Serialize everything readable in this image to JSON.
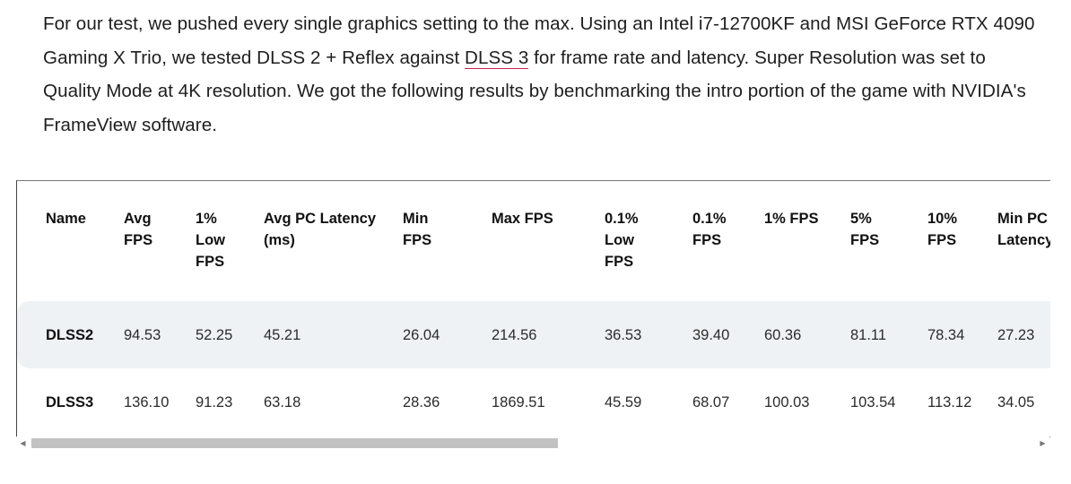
{
  "article": {
    "text_before_link": "For our test, we pushed every single graphics setting to the max. Using an Intel i7-12700KF and MSI GeForce RTX 4090 Gaming X Trio, we tested DLSS 2 + Reflex against ",
    "link_text": "DLSS 3",
    "text_after_link": " for frame rate and latency. Super Resolution was set to Quality Mode at 4K resolution. We got the following results by benchmarking the intro portion of the game with NVIDIA's FrameView software."
  },
  "table": {
    "columns": [
      "Name",
      "Avg FPS",
      "1% Low FPS",
      "Avg PC Latency (ms)",
      "Min FPS",
      "Max FPS",
      "0.1% Low FPS",
      "0.1% FPS",
      "1% FPS",
      "5% FPS",
      "10% FPS",
      "Min PC Latency"
    ],
    "rows": [
      [
        "DLSS2",
        "94.53",
        "52.25",
        "45.21",
        "26.04",
        "214.56",
        "36.53",
        "39.40",
        "60.36",
        "81.11",
        "78.34",
        "27.23"
      ],
      [
        "DLSS3",
        "136.10",
        "91.23",
        "63.18",
        "28.36",
        "1869.51",
        "45.59",
        "68.07",
        "100.03",
        "103.54",
        "113.12",
        "34.05"
      ]
    ]
  },
  "scrollbar": {
    "left_arrow": "◀",
    "right_arrow": "▶"
  }
}
